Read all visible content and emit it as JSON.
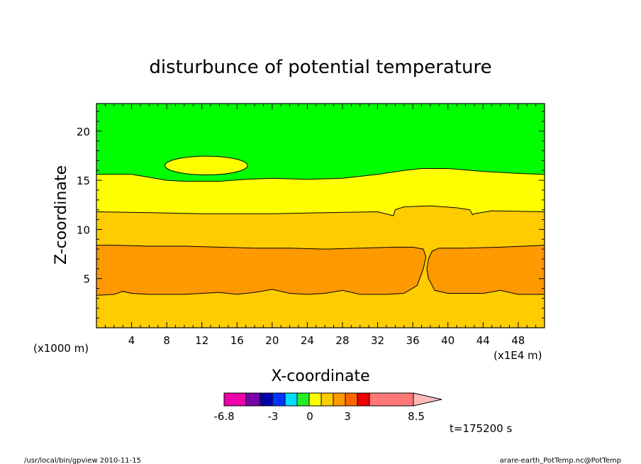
{
  "chart_data": {
    "type": "contour",
    "title": "disturbunce of potential temperature",
    "xlabel": "X-coordinate",
    "ylabel": "Z-coordinate",
    "x_unit_left": "(x1000 m)",
    "x_unit_right": "(x1E4 m)",
    "xlim": [
      0,
      51
    ],
    "ylim": [
      0,
      22.8
    ],
    "x_ticks": [
      "4",
      "8",
      "12",
      "16",
      "20",
      "24",
      "28",
      "32",
      "36",
      "40",
      "44",
      "48"
    ],
    "x_tick_values": [
      4,
      8,
      12,
      16,
      20,
      24,
      28,
      32,
      36,
      40,
      44,
      48
    ],
    "y_ticks": [
      "5",
      "10",
      "15",
      "20"
    ],
    "y_tick_values": [
      5,
      10,
      15,
      20
    ],
    "bands": [
      {
        "name": "band-3",
        "color": "#ffcc00",
        "lower": [
          [
            0,
            0
          ],
          [
            51,
            0
          ]
        ],
        "upper": [
          [
            0,
            3.3
          ],
          [
            2,
            3.4
          ],
          [
            3,
            3.7
          ],
          [
            4,
            3.5
          ],
          [
            6,
            3.4
          ],
          [
            10,
            3.4
          ],
          [
            12,
            3.5
          ],
          [
            14,
            3.6
          ],
          [
            16,
            3.4
          ],
          [
            18,
            3.6
          ],
          [
            20,
            3.9
          ],
          [
            22,
            3.5
          ],
          [
            24,
            3.4
          ],
          [
            26,
            3.5
          ],
          [
            28,
            3.8
          ],
          [
            30,
            3.4
          ],
          [
            33,
            3.4
          ],
          [
            35,
            3.5
          ],
          [
            36.5,
            4.3
          ],
          [
            37.2,
            6.0
          ],
          [
            37.5,
            7.2
          ],
          [
            37.2,
            8.0
          ],
          [
            36,
            8.2
          ],
          [
            34,
            8.2
          ],
          [
            30,
            8.1
          ],
          [
            26,
            8.0
          ],
          [
            22,
            8.1
          ],
          [
            18,
            8.1
          ],
          [
            14,
            8.2
          ],
          [
            10,
            8.3
          ],
          [
            6,
            8.3
          ],
          [
            2,
            8.4
          ],
          [
            0,
            8.4
          ],
          [
            0,
            11.8
          ],
          [
            6,
            11.7
          ],
          [
            12,
            11.6
          ],
          [
            20,
            11.6
          ],
          [
            26,
            11.7
          ],
          [
            32,
            11.8
          ],
          [
            33.8,
            11.4
          ],
          [
            34,
            12.0
          ],
          [
            35,
            12.3
          ],
          [
            38,
            12.4
          ],
          [
            41,
            12.2
          ],
          [
            42.5,
            12.0
          ],
          [
            42.8,
            11.5
          ],
          [
            43,
            11.6
          ],
          [
            45,
            11.9
          ],
          [
            51,
            11.8
          ],
          [
            51,
            0
          ]
        ]
      },
      {
        "name": "band-1",
        "color": "#ff9900",
        "lower": [],
        "upper": []
      },
      {
        "name": "band-6",
        "color": "#ffff00",
        "lower": [],
        "upper": []
      },
      {
        "name": "band-8",
        "color": "#00ff00",
        "lower": [],
        "upper": []
      }
    ],
    "levels": {
      "orange_left": [
        [
          0,
          3.3
        ],
        [
          2,
          3.4
        ],
        [
          3,
          3.7
        ],
        [
          4,
          3.5
        ],
        [
          6,
          3.4
        ],
        [
          10,
          3.4
        ],
        [
          12,
          3.5
        ],
        [
          14,
          3.6
        ],
        [
          16,
          3.4
        ],
        [
          18,
          3.6
        ],
        [
          20,
          3.9
        ],
        [
          22,
          3.5
        ],
        [
          24,
          3.4
        ],
        [
          26,
          3.5
        ],
        [
          28,
          3.8
        ],
        [
          30,
          3.4
        ],
        [
          33,
          3.4
        ],
        [
          35,
          3.5
        ],
        [
          36.5,
          4.3
        ],
        [
          37.2,
          6.0
        ],
        [
          37.5,
          7.2
        ],
        [
          37.2,
          8.0
        ],
        [
          36,
          8.2
        ],
        [
          34,
          8.2
        ],
        [
          30,
          8.1
        ],
        [
          26,
          8.0
        ],
        [
          22,
          8.1
        ],
        [
          18,
          8.1
        ],
        [
          14,
          8.2
        ],
        [
          10,
          8.3
        ],
        [
          6,
          8.3
        ],
        [
          2,
          8.4
        ],
        [
          0,
          8.4
        ]
      ],
      "orange_right": [
        [
          51,
          3.4
        ],
        [
          48,
          3.4
        ],
        [
          47,
          3.6
        ],
        [
          46,
          3.8
        ],
        [
          44,
          3.5
        ],
        [
          42,
          3.5
        ],
        [
          40,
          3.5
        ],
        [
          38.5,
          3.8
        ],
        [
          37.8,
          5.0
        ],
        [
          37.6,
          6.0
        ],
        [
          37.8,
          7.0
        ],
        [
          38.2,
          7.8
        ],
        [
          39,
          8.1
        ],
        [
          42,
          8.1
        ],
        [
          46,
          8.2
        ],
        [
          51,
          8.4
        ]
      ],
      "yellow_base": [
        [
          0,
          11.8
        ],
        [
          6,
          11.7
        ],
        [
          12,
          11.6
        ],
        [
          20,
          11.6
        ],
        [
          26,
          11.7
        ],
        [
          32,
          11.8
        ],
        [
          33.8,
          11.4
        ],
        [
          34,
          12.0
        ],
        [
          35,
          12.3
        ],
        [
          38,
          12.4
        ],
        [
          41,
          12.2
        ],
        [
          42.5,
          12.0
        ],
        [
          42.8,
          11.5
        ],
        [
          43,
          11.6
        ],
        [
          45,
          11.9
        ],
        [
          51,
          11.8
        ]
      ],
      "green_base": [
        [
          0,
          15.6
        ],
        [
          4,
          15.6
        ],
        [
          6,
          15.3
        ],
        [
          8,
          15.0
        ],
        [
          10,
          14.9
        ],
        [
          14,
          14.9
        ],
        [
          17,
          15.1
        ],
        [
          20,
          15.2
        ],
        [
          24,
          15.1
        ],
        [
          28,
          15.2
        ],
        [
          32,
          15.6
        ],
        [
          35,
          16.0
        ],
        [
          37,
          16.2
        ],
        [
          40,
          16.2
        ],
        [
          44,
          15.9
        ],
        [
          48,
          15.7
        ],
        [
          51,
          15.6
        ]
      ],
      "yellow_island": {
        "cx": 12.5,
        "cy": 16.5,
        "rx": 4.7,
        "ry": 0.95
      }
    },
    "colorbar": {
      "labels": [
        "-6.8",
        "-3",
        "0",
        "3",
        "8.5"
      ],
      "colors": [
        "#ee00aa",
        "#7700aa",
        "#0000aa",
        "#0033ff",
        "#00ddff",
        "#22ee22",
        "#ffff00",
        "#ffcc00",
        "#ff9900",
        "#ff6600",
        "#ee0000",
        "#ff7777",
        "#ffbbbb"
      ]
    }
  },
  "time_label": "t=175200 s",
  "footer_left": "/usr/local/bin/gpview  2010-11-15",
  "footer_right": "arare-earth_PotTemp.nc@PotTemp"
}
